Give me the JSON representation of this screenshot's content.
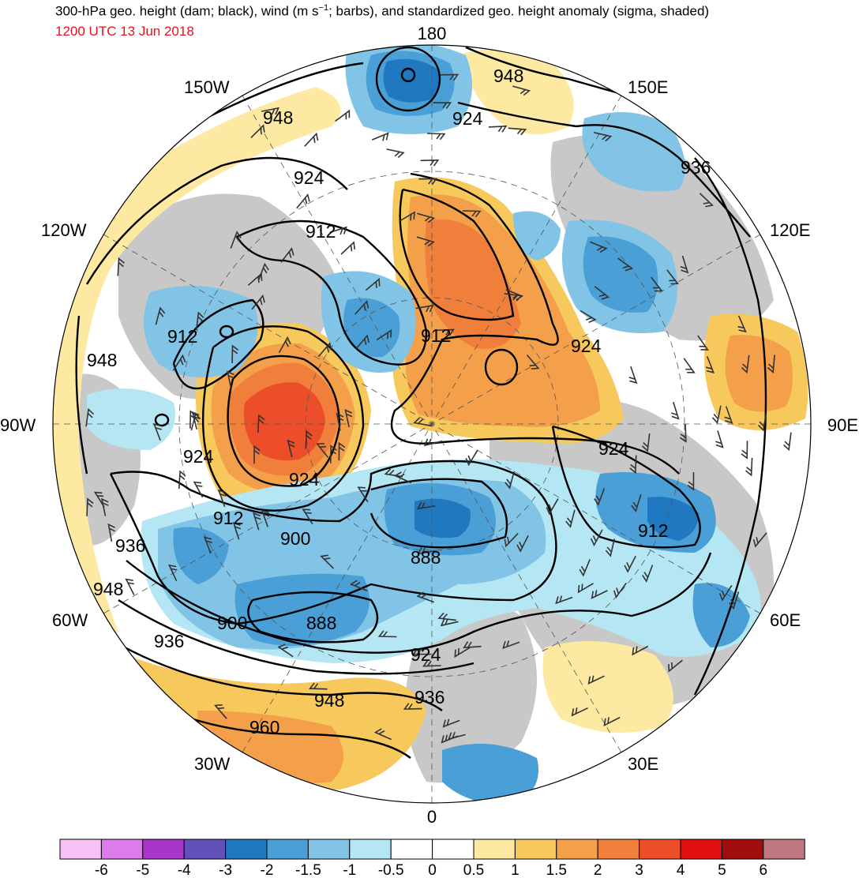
{
  "header": {
    "title_pre": "300-hPa geo. height (dam; black), wind (m s",
    "title_sup": "−1",
    "title_post": "; barbs), and standardized geo. height anomaly (sigma, shaded)",
    "valid_time": "1200 UTC 13 Jun 2018"
  },
  "map": {
    "projection": "north polar stereographic",
    "longitude_labels": {
      "top": "180",
      "bottom": "0",
      "left": "90W",
      "right": "90E",
      "upper_left": "150W",
      "upper_left2": "120W",
      "upper_right": "150E",
      "upper_right2": "120E",
      "lower_left": "60W",
      "lower_left2": "30W",
      "lower_right": "60E",
      "lower_right2": "30E"
    },
    "contour_labels": {
      "c948_top": "948",
      "c924_top": "924",
      "c936_ne": "936",
      "c948_nw": "948",
      "c924_nw": "924",
      "c912_n": "912",
      "c912_w": "912",
      "c948_w": "948",
      "c912_c": "912",
      "c924_e": "924",
      "c924_w": "924",
      "c924_e2": "924",
      "c924_c": "924",
      "c912_sw": "912",
      "c900_s": "900",
      "c912_se": "912",
      "c936_sw": "936",
      "c888_s": "888",
      "c948_sw": "948",
      "c900_sw": "900",
      "c888_s2": "888",
      "c936_sw2": "936",
      "c924_s": "924",
      "c936_s": "936",
      "c948_s": "948",
      "c960_s": "960"
    },
    "colors": {
      "land": "#c8c8c8",
      "ocean": "#ffffff",
      "neg_6": "#f6c2f6",
      "neg_5": "#dc7bea",
      "neg_4": "#a836c8",
      "neg_3": "#6251b8",
      "neg_2": "#1f78c0",
      "neg_15": "#4a9fd6",
      "neg_1": "#82c4e6",
      "neg_05": "#b5e6f4",
      "pos_05": "#fde9a2",
      "pos_1": "#f7c85c",
      "pos_15": "#f4a04a",
      "pos_2": "#f07f3c",
      "pos_3": "#eb4e28",
      "pos_4": "#e00f10",
      "pos_5": "#a00d0d",
      "pos_6": "#c07880"
    }
  },
  "colorbar": {
    "ticks": [
      "-6",
      "-5",
      "-4",
      "-3",
      "-2",
      "-1.5",
      "-1",
      "-0.5",
      "0",
      "0.5",
      "1",
      "1.5",
      "2",
      "3",
      "4",
      "5",
      "6"
    ]
  }
}
